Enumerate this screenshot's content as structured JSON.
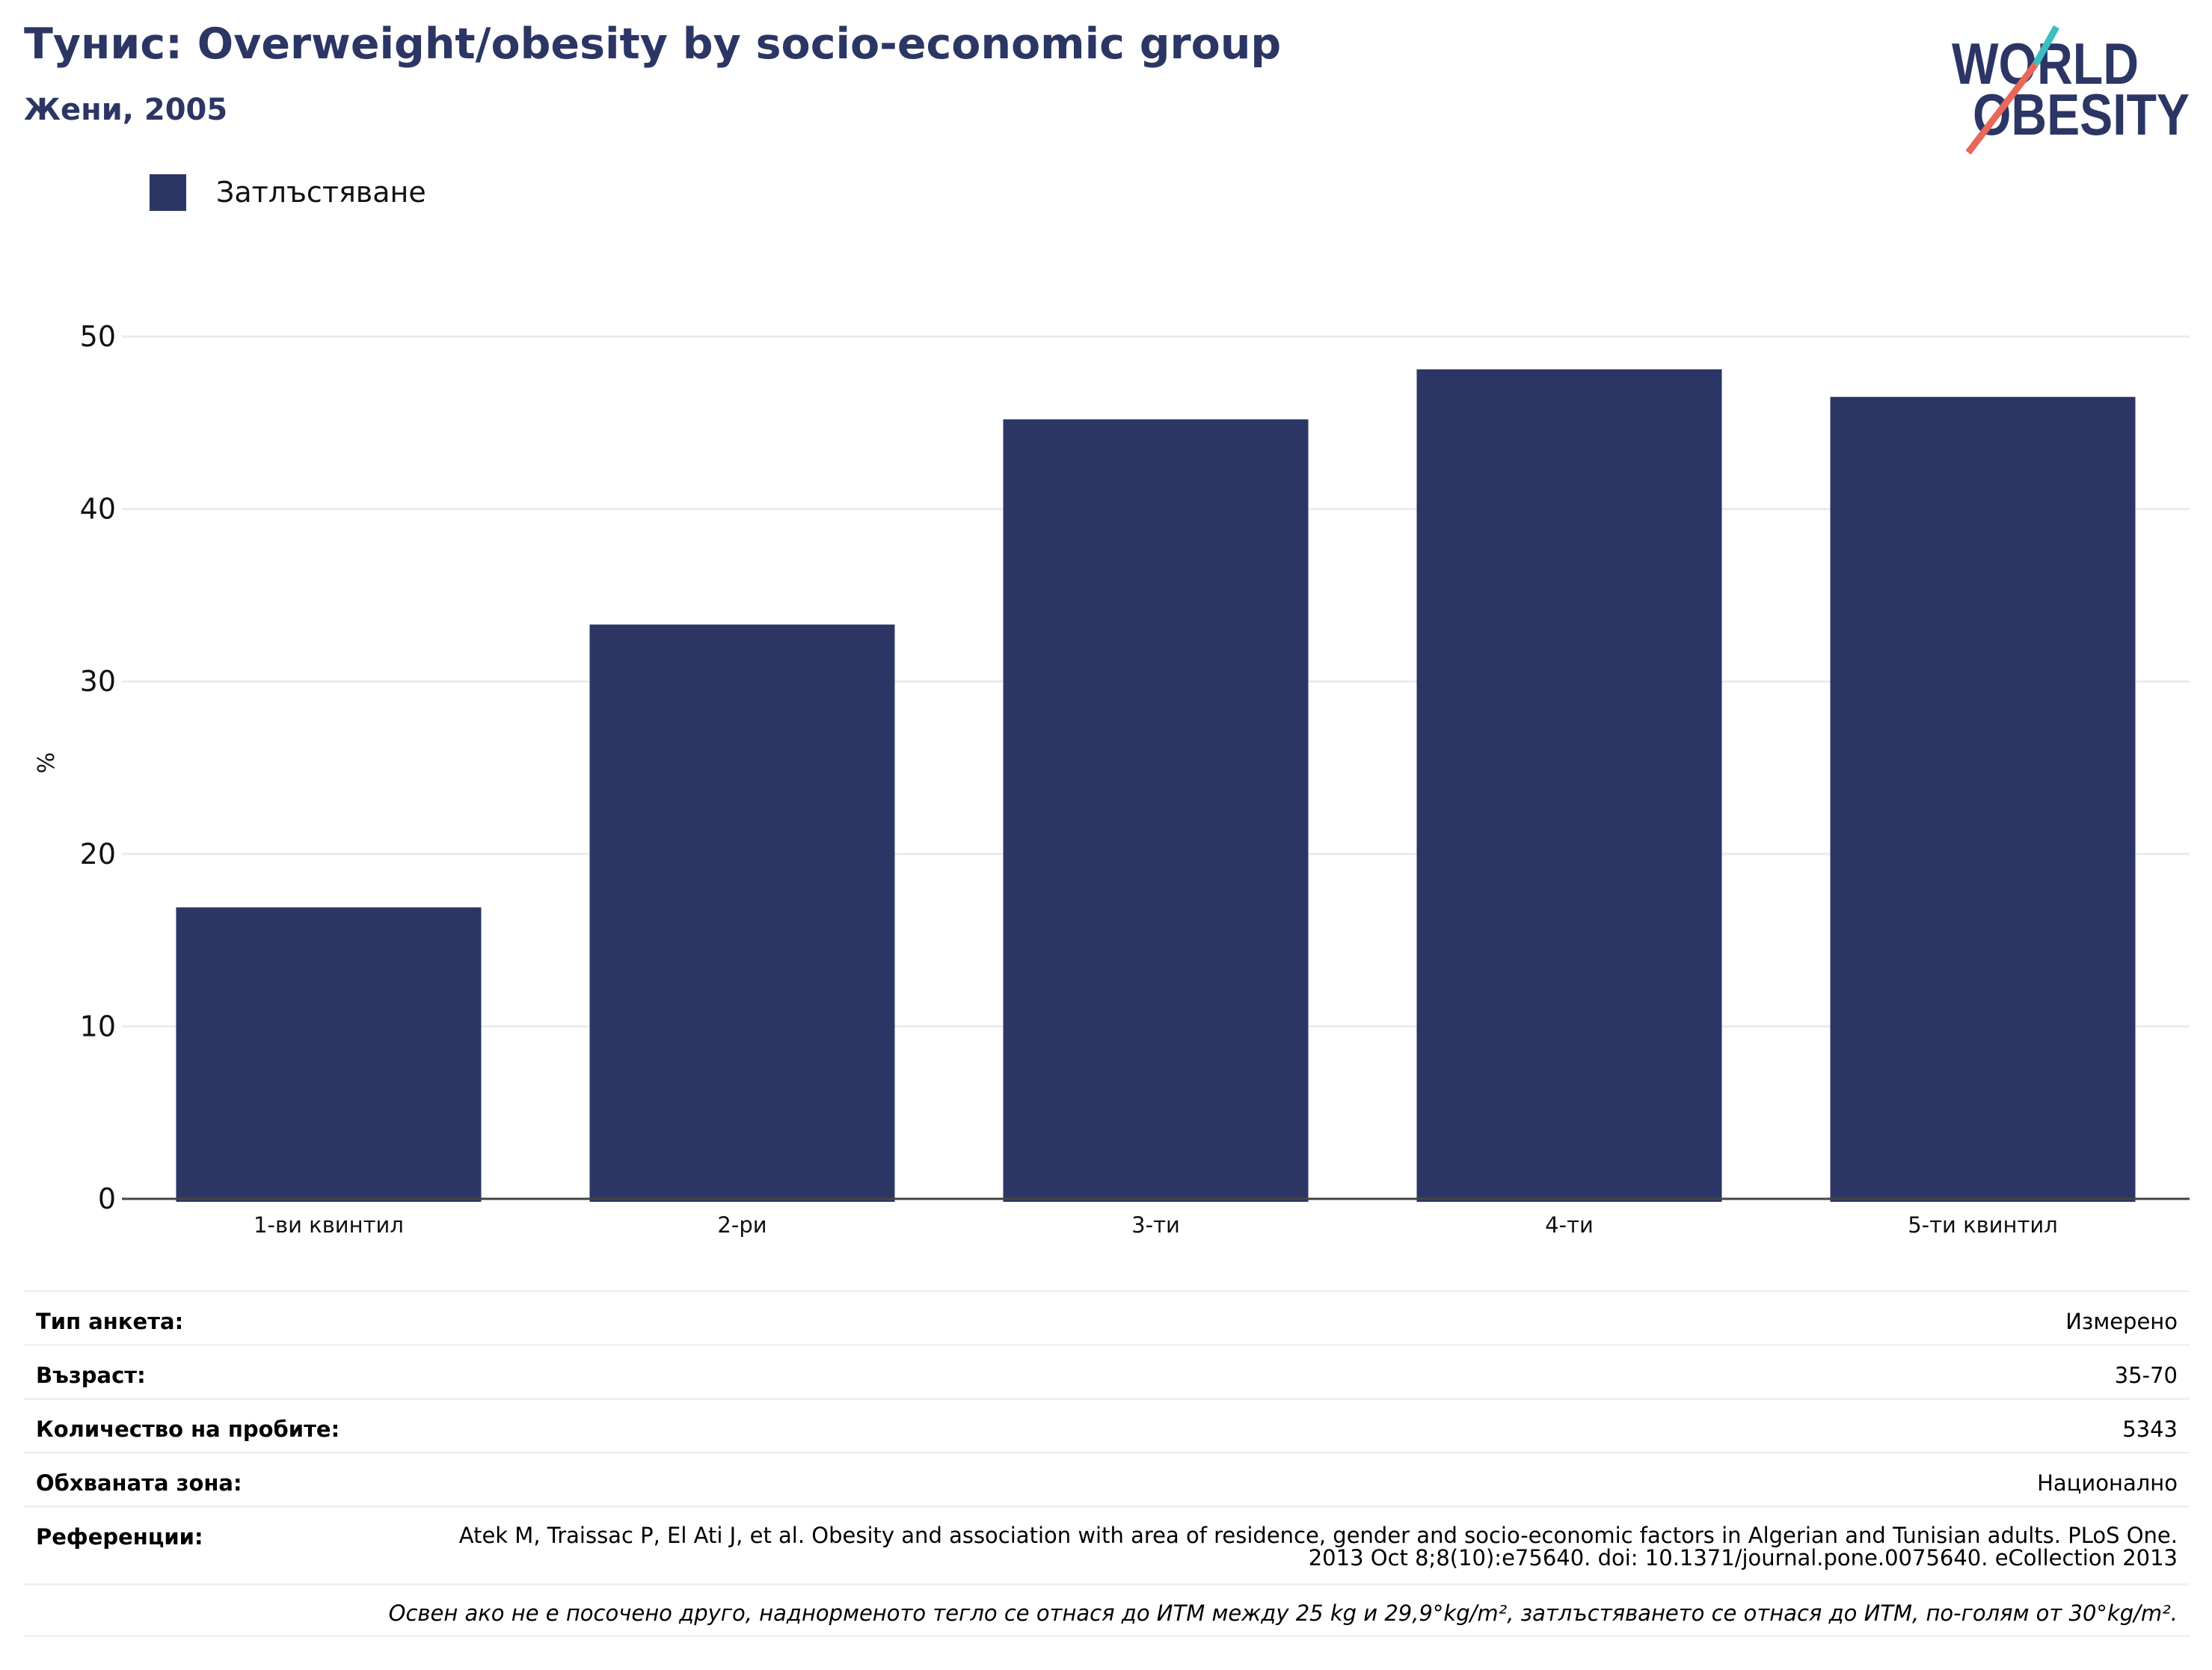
{
  "header": {
    "title": "Тунис: Overweight/obesity by socio-economic group",
    "subtitle": "Жени, 2005"
  },
  "logo": {
    "text": "WORLD OBESITY",
    "colors": {
      "text": "#2b3664",
      "teal": "#3bbdc2",
      "coral": "#e8685a"
    }
  },
  "chart_data": {
    "type": "bar",
    "categories": [
      "1-ви квинтил",
      "2-ри",
      "3-ти",
      "4-ти",
      "5-ти квинтил"
    ],
    "series": [
      {
        "name": "Затлъстяване",
        "values": [
          16.9,
          33.3,
          45.2,
          48.1,
          46.5
        ],
        "color": "#2b3664"
      }
    ],
    "ylabel": "%",
    "xlabel": "",
    "ylim": [
      0,
      50
    ],
    "yticks": [
      0,
      10,
      20,
      30,
      40,
      50
    ],
    "grid": true,
    "legend_position": "top-left"
  },
  "info": {
    "rows": [
      {
        "label": "Тип анкета:",
        "value": "Измерено"
      },
      {
        "label": "Възраст:",
        "value": "35-70"
      },
      {
        "label": "Количество на пробите:",
        "value": "5343"
      },
      {
        "label": "Обхваната зона:",
        "value": "Национално"
      }
    ],
    "references": {
      "label": "Референции:",
      "value": "Atek M, Traissac P, El Ati J, et al. Obesity and association with area of residence, gender and socio-economic factors in Algerian and Tunisian adults. PLoS One. 2013 Oct 8;8(10):e75640. doi: 10.1371/journal.pone.0075640. eCollection 2013"
    },
    "note": "Освен ако не е посочено друго, наднорменото тегло се отнася до ИТМ между 25 kg и 29,9°kg/m², затлъстяването се отнася до ИТМ, по-голям от 30°kg/m²."
  }
}
